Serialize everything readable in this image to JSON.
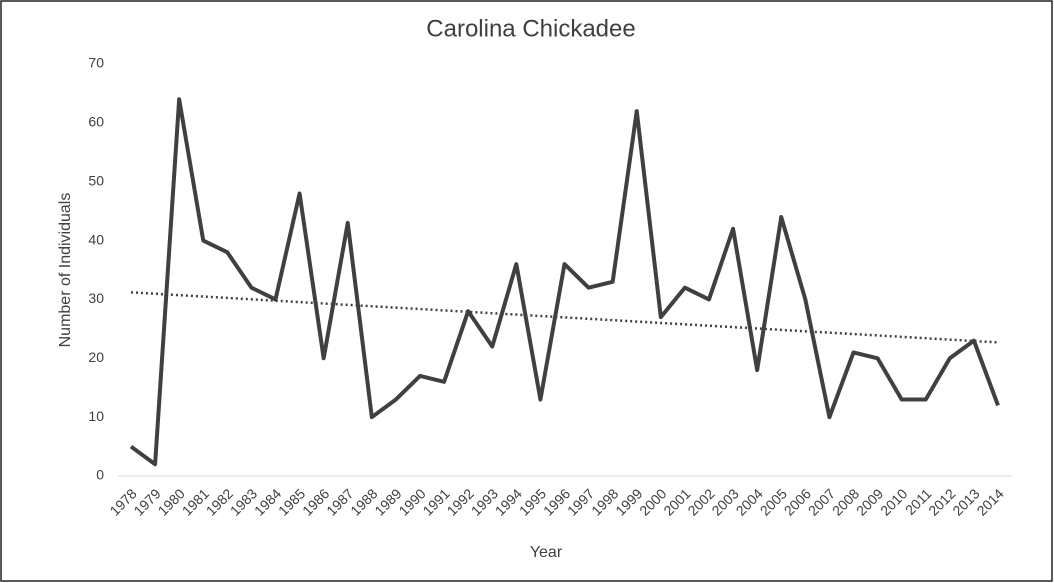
{
  "chart_data": {
    "type": "line",
    "title": "Carolina Chickadee",
    "x_label": "Year",
    "y_label": "Number of Individuals",
    "categories": [
      "1978",
      "1979",
      "1980",
      "1981",
      "1982",
      "1983",
      "1984",
      "1985",
      "1986",
      "1987",
      "1988",
      "1989",
      "1990",
      "1991",
      "1992",
      "1993",
      "1994",
      "1995",
      "1996",
      "1997",
      "1998",
      "1999",
      "2000",
      "2001",
      "2002",
      "2003",
      "2004",
      "2005",
      "2006",
      "2007",
      "2008",
      "2009",
      "2010",
      "2011",
      "2012",
      "2013",
      "2014"
    ],
    "values": [
      5,
      2,
      64,
      40,
      38,
      32,
      30,
      48,
      20,
      43,
      10,
      13,
      17,
      16,
      28,
      22,
      36,
      13,
      36,
      32,
      33,
      62,
      27,
      32,
      30,
      42,
      18,
      44,
      30,
      10,
      21,
      20,
      13,
      13,
      20,
      23,
      12
    ],
    "color": "#404040",
    "trendline": [
      31.2,
      22.7
    ],
    "ylim": [
      0,
      70
    ],
    "yticks": [
      0,
      10,
      20,
      30,
      40,
      50,
      60,
      70
    ],
    "grid": false
  }
}
